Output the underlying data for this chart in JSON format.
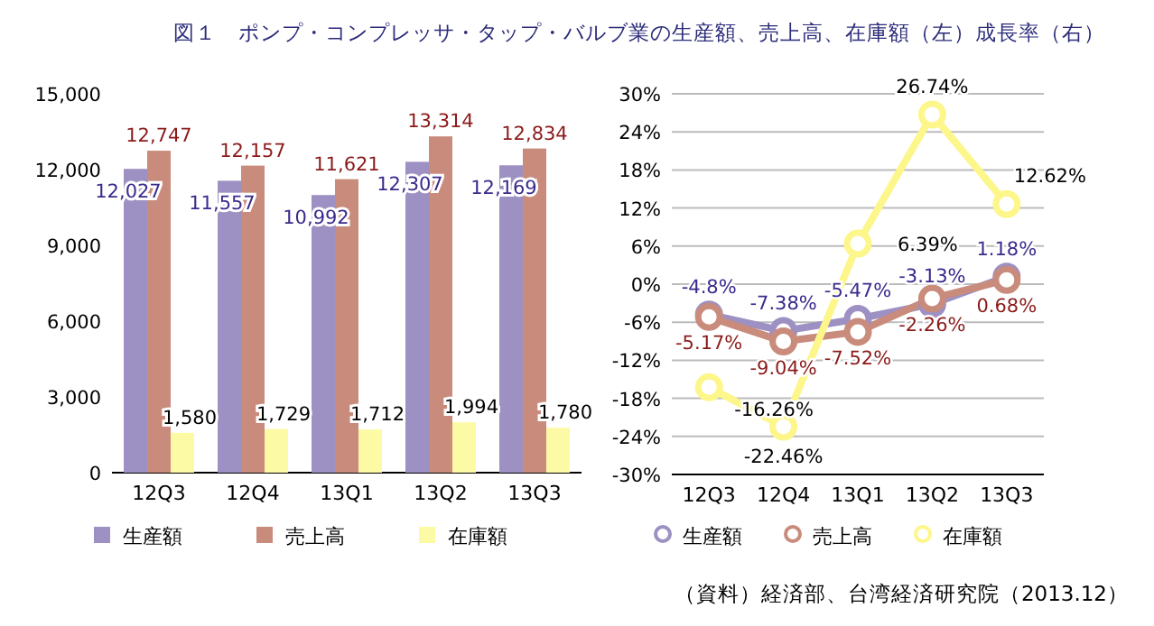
{
  "chart_data": [
    {
      "type": "bar",
      "title": "図１　ポンプ・コンプレッサ・タップ・バルブ業の生産額、売上高、在庫額（左）成長率（右）",
      "categories": [
        "12Q3",
        "12Q4",
        "13Q1",
        "13Q2",
        "13Q3"
      ],
      "series": [
        {
          "name": "生産額",
          "color": "#9d90c2",
          "values": [
            12027,
            11557,
            10992,
            12307,
            12169
          ],
          "value_labels": [
            "12,027",
            "11,557",
            "10,992",
            "12,307",
            "12,169"
          ]
        },
        {
          "name": "売上高",
          "color": "#c98b7c",
          "values": [
            12747,
            12157,
            11621,
            13314,
            12834
          ],
          "value_labels": [
            "12,747",
            "12,157",
            "11,621",
            "13,314",
            "12,834"
          ]
        },
        {
          "name": "在庫額",
          "color": "#fdfaa6",
          "values": [
            1580,
            1729,
            1712,
            1994,
            1780
          ],
          "value_labels": [
            "1,580",
            "1,729",
            "1,712",
            "1,994",
            "1,780"
          ]
        }
      ],
      "ylim": [
        0,
        15000
      ],
      "yticks": [
        {
          "value": 0,
          "label": "0"
        },
        {
          "value": 3000,
          "label": "3,000"
        },
        {
          "value": 6000,
          "label": "6,000"
        },
        {
          "value": 9000,
          "label": "9,000"
        },
        {
          "value": 12000,
          "label": "12,000"
        },
        {
          "value": 15000,
          "label": "15,000"
        }
      ],
      "grid": false,
      "legend": "bottom"
    },
    {
      "type": "line",
      "categories": [
        "12Q3",
        "12Q4",
        "13Q1",
        "13Q2",
        "13Q3"
      ],
      "series": [
        {
          "name": "生産額",
          "color": "#9d90c2",
          "values": [
            -4.8,
            -7.38,
            -5.47,
            -3.13,
            1.18
          ],
          "value_labels": [
            "-4.8%",
            "-7.38%",
            "-5.47%",
            "-3.13%",
            "1.18%"
          ]
        },
        {
          "name": "売上高",
          "color": "#c98b7c",
          "values": [
            -5.17,
            -9.04,
            -7.52,
            -2.26,
            0.68
          ],
          "value_labels": [
            "-5.17%",
            "-9.04%",
            "-7.52%",
            "-2.26%",
            "0.68%"
          ]
        },
        {
          "name": "在庫額",
          "color": "#fdf68a",
          "values": [
            -16.26,
            -22.46,
            6.39,
            26.74,
            12.62
          ],
          "value_labels": [
            "-16.26%",
            "-22.46%",
            "6.39%",
            "26.74%",
            "12.62%"
          ]
        }
      ],
      "ylim": [
        -30,
        30
      ],
      "yticks": [
        {
          "value": -30,
          "label": "-30%"
        },
        {
          "value": -24,
          "label": "-24%"
        },
        {
          "value": -18,
          "label": "-18%"
        },
        {
          "value": -12,
          "label": "-12%"
        },
        {
          "value": -6,
          "label": "-6%"
        },
        {
          "value": 0,
          "label": "0%"
        },
        {
          "value": 6,
          "label": "6%"
        },
        {
          "value": 12,
          "label": "12%"
        },
        {
          "value": 18,
          "label": "18%"
        },
        {
          "value": 24,
          "label": "24%"
        },
        {
          "value": 30,
          "label": "30%"
        }
      ],
      "grid": "y",
      "legend": "bottom",
      "marker": "circle",
      "annotations": [
        "（資料）経済部、台湾経済研究院（2013.12）"
      ]
    }
  ]
}
